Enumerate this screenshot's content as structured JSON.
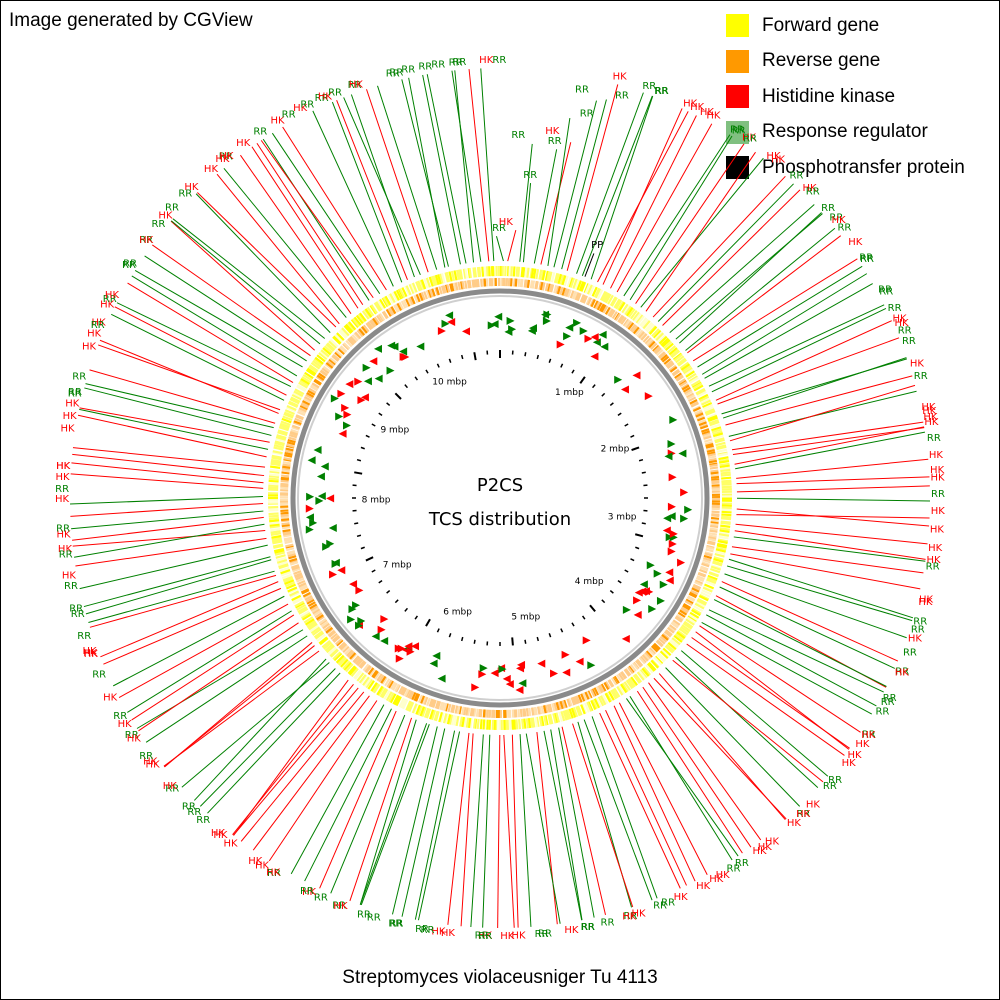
{
  "credit": "Image generated by CGView",
  "caption": "Streptomyces violaceusniger Tu 4113",
  "center": {
    "line1": "P2CS",
    "line2": "TCS distribution"
  },
  "legend": [
    {
      "label": "Forward gene",
      "color": "#ffff00"
    },
    {
      "label": "Reverse gene",
      "color": "#ff9900"
    },
    {
      "label": "Histidine kinase",
      "color": "#ff0000"
    },
    {
      "label": "Response regulator",
      "color": "#80c080"
    },
    {
      "label": "Phosphotransfer protein",
      "color": "#000000"
    }
  ],
  "colors": {
    "hk": "#ff0000",
    "rr": "#008000",
    "pp": "#000000"
  },
  "axis": {
    "unit": "mbp",
    "ticks": [
      "1 mbp",
      "2 mbp",
      "3 mbp",
      "4 mbp",
      "5 mbp",
      "6 mbp",
      "7 mbp",
      "8 mbp",
      "9 mbp",
      "10 mbp"
    ]
  }
}
